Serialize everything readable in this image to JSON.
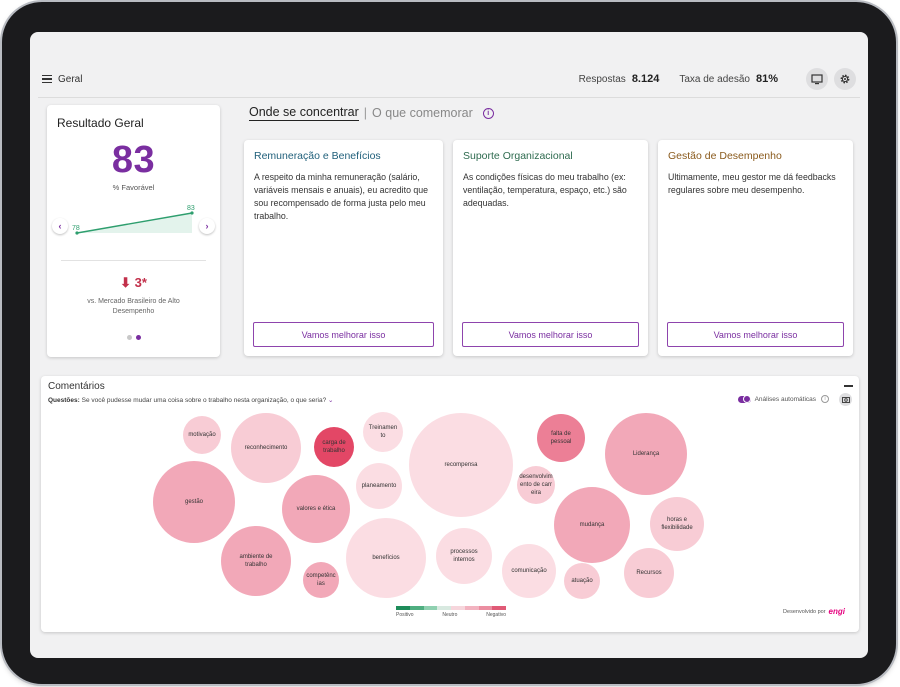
{
  "header": {
    "breadcrumb": "Geral",
    "responses_label": "Respostas",
    "responses_value": "8.124",
    "adhesion_label": "Taxa de adesão",
    "adhesion_value": "81%"
  },
  "result": {
    "title": "Resultado Geral",
    "score": "83",
    "score_caption": "% Favorável",
    "spark_start": "78",
    "spark_end": "83",
    "delta": "3*",
    "delta_caption": "vs. Mercado Brasileiro de Alto Desempenho",
    "page_dots_active": 2
  },
  "tabs": {
    "active": "Onde se concentrar",
    "separator": "|",
    "inactive": "O que comemorar"
  },
  "focus_cards": [
    {
      "title": "Remuneração e Benefícios",
      "title_color": "#1f5f7a",
      "text": "A respeito da minha remuneração (salário, variáveis mensais e anuais), eu acredito que sou recompensado de forma justa pelo meu trabalho.",
      "button": "Vamos melhorar isso"
    },
    {
      "title": "Suporte Organizacional",
      "title_color": "#2e6b4f",
      "text": "As condições físicas do meu trabalho (ex: ventilação, temperatura, espaço, etc.) são adequadas.",
      "button": "Vamos melhorar isso"
    },
    {
      "title": "Gestão de Desempenho",
      "title_color": "#8a5a1c",
      "text": "Ultimamente, meu gestor me dá feedbacks regulares sobre meu desempenho.",
      "button": "Vamos melhorar isso"
    }
  ],
  "comments": {
    "title": "Comentários",
    "question_label": "Questões:",
    "question_text": "Se você pudesse mudar uma coisa sobre o trabalho nesta organização, o que seria?",
    "toggle_label": "Análises automáticas",
    "legend_positive": "Positivo",
    "legend_neutral": "Neutro",
    "legend_negative": "Negativo",
    "powered_by": "Desenvolvido por",
    "brand": "engi",
    "bubbles": [
      {
        "label": "motivação",
        "sentiment": 2
      },
      {
        "label": "reconhecimento",
        "sentiment": 2
      },
      {
        "label": "carga de trabalho",
        "sentiment": 5
      },
      {
        "label": "Treinamento",
        "sentiment": 1
      },
      {
        "label": "recompensa",
        "sentiment": 1
      },
      {
        "label": "falta de pessoal",
        "sentiment": 4
      },
      {
        "label": "Liderança",
        "sentiment": 3
      },
      {
        "label": "gestão",
        "sentiment": 3
      },
      {
        "label": "valores e ética",
        "sentiment": 3
      },
      {
        "label": "planeamento",
        "sentiment": 1
      },
      {
        "label": "desenvolvimento de carreira",
        "sentiment": 2
      },
      {
        "label": "mudança",
        "sentiment": 3
      },
      {
        "label": "horas e flexibilidade",
        "sentiment": 2
      },
      {
        "label": "ambiente de trabalho",
        "sentiment": 3
      },
      {
        "label": "competências",
        "sentiment": 3
      },
      {
        "label": "benefícios",
        "sentiment": 1
      },
      {
        "label": "processos internos",
        "sentiment": 1
      },
      {
        "label": "comunicação",
        "sentiment": 1
      },
      {
        "label": "atuação",
        "sentiment": 2
      },
      {
        "label": "Recursos",
        "sentiment": 2
      }
    ]
  },
  "colors": {
    "accent": "#7a2ea0",
    "negative": "#c2304b"
  }
}
